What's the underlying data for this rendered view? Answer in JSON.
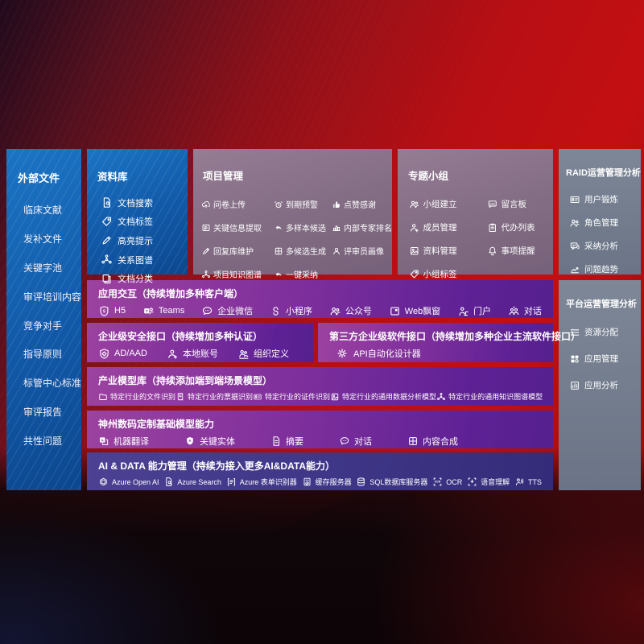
{
  "palette": {
    "background_red": "#b80f14",
    "blue_panel": "#1565b2",
    "mauve_panel": "#85707f",
    "slate_panel": "#717b8c",
    "purple_row": "#7c2f9a",
    "indigo_row": "#423a8c"
  },
  "external_files": {
    "title": "外部文件",
    "items": [
      "临床文献",
      "发补文件",
      "关键字池",
      "审评培训内容",
      "竞争对手",
      "指导原则",
      "标管中心标准",
      "审评报告",
      "共性问题"
    ]
  },
  "repository": {
    "title": "资料库",
    "items": [
      {
        "icon": "doc-search",
        "label": "文档搜索"
      },
      {
        "icon": "tag",
        "label": "文档标签"
      },
      {
        "icon": "pen",
        "label": "高亮提示"
      },
      {
        "icon": "network",
        "label": "关系图谱"
      },
      {
        "icon": "docs",
        "label": "文档分类"
      }
    ]
  },
  "project_mgmt": {
    "title": "项目管理",
    "items": [
      {
        "icon": "cloud-up",
        "label": "问卷上传"
      },
      {
        "icon": "alarm",
        "label": "到期预警"
      },
      {
        "icon": "thumb",
        "label": "点赞感谢"
      },
      {
        "icon": "extract",
        "label": "关键信息提取"
      },
      {
        "icon": "reply",
        "label": "多样本候选"
      },
      {
        "icon": "rank",
        "label": "内部专家排名"
      },
      {
        "icon": "pen",
        "label": "回复库维护"
      },
      {
        "icon": "grid",
        "label": "多候选生成"
      },
      {
        "icon": "person",
        "label": "评审员画像"
      },
      {
        "icon": "network",
        "label": "项目知识图谱"
      },
      {
        "icon": "reply",
        "label": "一键采纳"
      }
    ]
  },
  "topic_groups": {
    "title": "专题小组",
    "items": [
      {
        "icon": "people",
        "label": "小组建立"
      },
      {
        "icon": "bbs",
        "label": "留言板"
      },
      {
        "icon": "person-plus",
        "label": "成员管理"
      },
      {
        "icon": "clipboard",
        "label": "代办列表"
      },
      {
        "icon": "album",
        "label": "资料管理"
      },
      {
        "icon": "bell",
        "label": "事项提醒"
      },
      {
        "icon": "tag",
        "label": "小组标签"
      }
    ]
  },
  "raid_analysis": {
    "title": "RAID运营管理分析",
    "items": [
      {
        "icon": "id-card",
        "label": "用户锻炼"
      },
      {
        "icon": "people",
        "label": "角色管理"
      },
      {
        "icon": "chat-qa",
        "label": "采纳分析"
      },
      {
        "icon": "trend",
        "label": "问题趋势"
      }
    ]
  },
  "platform_analysis": {
    "title": "平台运营管理分析",
    "items": [
      {
        "icon": "list",
        "label": "资源分配"
      },
      {
        "icon": "apps",
        "label": "应用管理"
      },
      {
        "icon": "app-chart",
        "label": "应用分析"
      }
    ]
  },
  "app_interaction": {
    "title": "应用交互（持续增加多种客户端）",
    "items": [
      {
        "icon": "h5",
        "label": "H5"
      },
      {
        "icon": "teams",
        "label": "Teams"
      },
      {
        "icon": "chat-dots",
        "label": "企业微信"
      },
      {
        "icon": "miniprogram",
        "label": "小程序"
      },
      {
        "icon": "people",
        "label": "公众号"
      },
      {
        "icon": "window",
        "label": "Web飘窗"
      },
      {
        "icon": "portal",
        "label": "门户"
      },
      {
        "icon": "dialog",
        "label": "对话"
      }
    ]
  },
  "security_api": {
    "title": "企业级安全接口（持续增加多种认证）",
    "items": [
      {
        "icon": "shield",
        "label": "AD/AAD"
      },
      {
        "icon": "person-plus",
        "label": "本地账号"
      },
      {
        "icon": "org",
        "label": "组织定义"
      }
    ]
  },
  "third_party_api": {
    "title": "第三方企业级软件接口（持续增加多种企业主流软件接口）",
    "items": [
      {
        "icon": "gear",
        "label": "API自动化设计器"
      }
    ]
  },
  "industry_models": {
    "title": "产业模型库（持续添加端到端场景模型）",
    "items": [
      {
        "icon": "folder",
        "label": "特定行业的文件识别"
      },
      {
        "icon": "receipt",
        "label": "特定行业的票据识别"
      },
      {
        "icon": "id-card",
        "label": "特定行业的证件识别"
      },
      {
        "icon": "album",
        "label": "特定行业的通用数据分析模型"
      },
      {
        "icon": "network",
        "label": "特定行业的通用知识图谱模型"
      }
    ]
  },
  "base_models": {
    "title": "神州数码定制基础模型能力",
    "items": [
      {
        "icon": "translate",
        "label": "机器翻译"
      },
      {
        "icon": "entity",
        "label": "关键实体"
      },
      {
        "icon": "doc",
        "label": "摘要"
      },
      {
        "icon": "chat-dots",
        "label": "对话"
      },
      {
        "icon": "grid",
        "label": "内容合成"
      }
    ]
  },
  "ai_data": {
    "title": "AI & DATA 能力管理（持续为接入更多AI&DATA能力）",
    "items": [
      {
        "icon": "openai",
        "label": "Azure Open AI"
      },
      {
        "icon": "doc-search",
        "label": "Azure Search"
      },
      {
        "icon": "form",
        "label": "Azure 表单识别器"
      },
      {
        "icon": "cache",
        "label": "缓存服务器"
      },
      {
        "icon": "database",
        "label": "SQL数据库服务器"
      },
      {
        "icon": "ocr",
        "label": "OCR"
      },
      {
        "icon": "speech",
        "label": "语音理解"
      },
      {
        "icon": "tts",
        "label": "TTS"
      }
    ]
  }
}
